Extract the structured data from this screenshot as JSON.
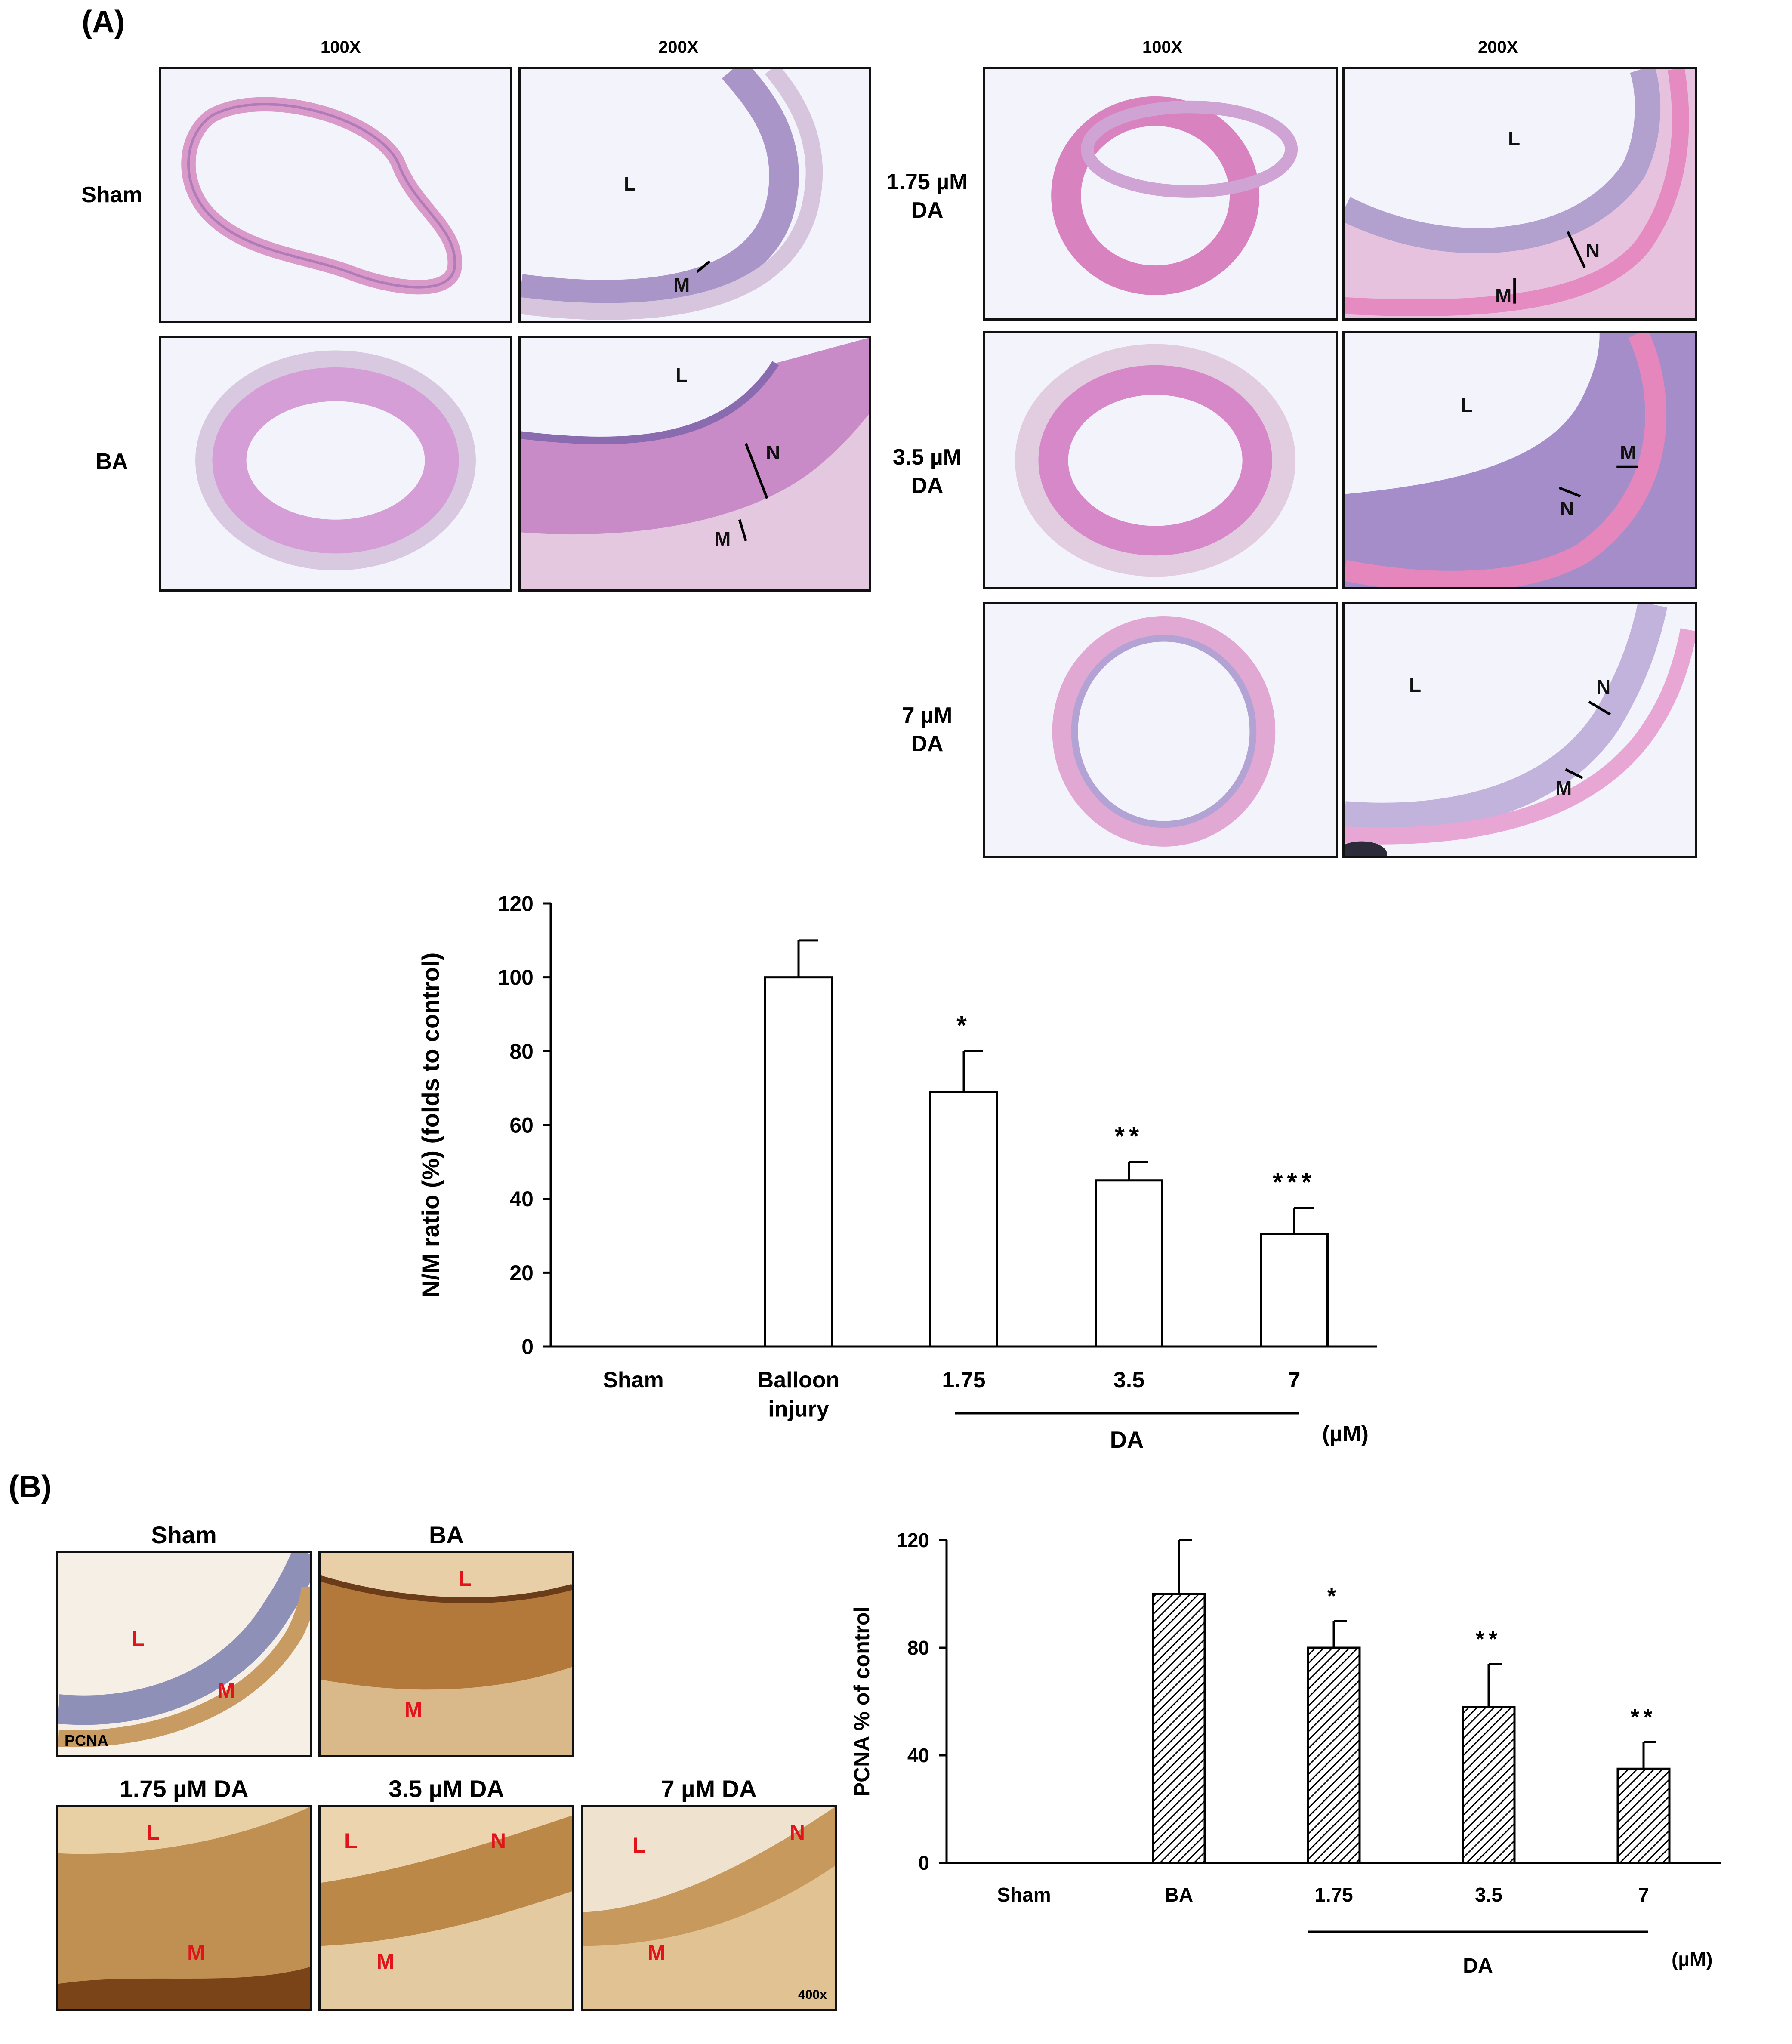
{
  "panel_a": {
    "letter": "(A)",
    "magnifications": {
      "low": "100X",
      "high": "200X"
    },
    "left_rows": [
      {
        "name": "Sham",
        "label_lines": [
          "Sham"
        ],
        "markers_high": [
          "L",
          "M"
        ]
      },
      {
        "name": "BA",
        "label_lines": [
          "BA"
        ],
        "markers_high": [
          "L",
          "N",
          "M"
        ]
      }
    ],
    "right_rows": [
      {
        "name": "1.75 µM DA",
        "label_lines": [
          "1.75 µM",
          "DA"
        ],
        "markers_high": [
          "L",
          "N",
          "M"
        ]
      },
      {
        "name": "3.5 µM DA",
        "label_lines": [
          "3.5 µM",
          "DA"
        ],
        "markers_high": [
          "L",
          "M",
          "N"
        ]
      },
      {
        "name": "7 µM DA",
        "label_lines": [
          "7 µM",
          "DA"
        ],
        "markers_high": [
          "L",
          "N",
          "M"
        ]
      }
    ]
  },
  "panel_b": {
    "letter": "(B)",
    "stain_label": "PCNA",
    "scale_label": "400x",
    "images": [
      {
        "title": "Sham",
        "markers": [
          "L",
          "M"
        ]
      },
      {
        "title": "BA",
        "markers": [
          "L",
          "M"
        ]
      },
      {
        "title": "1.75 µM DA",
        "markers": [
          "L",
          "M"
        ]
      },
      {
        "title": "3.5 µM DA",
        "markers": [
          "L",
          "N",
          "M"
        ]
      },
      {
        "title": "7 µM DA",
        "markers": [
          "L",
          "N",
          "M"
        ]
      }
    ]
  },
  "chart_data": [
    {
      "type": "bar",
      "id": "nm_ratio",
      "title": "",
      "ylabel": "N/M ratio (%)   (folds to control)",
      "xlabel": "",
      "categories": [
        "Sham",
        "Balloon\ninjury",
        "1.75",
        "3.5",
        "7"
      ],
      "values": [
        0,
        100,
        69,
        45,
        30.5
      ],
      "errors": [
        0,
        10,
        11,
        5,
        7
      ],
      "significance": [
        "",
        "",
        "*",
        "**",
        "***"
      ],
      "yticks": [
        0,
        20,
        40,
        60,
        80,
        100,
        120
      ],
      "ylim": [
        0,
        120
      ],
      "group_label": "DA",
      "unit_label": "(µM)",
      "fill": "#ffffff"
    },
    {
      "type": "bar",
      "id": "pcna",
      "title": "",
      "ylabel": "PCNA % of control",
      "xlabel": "",
      "categories": [
        "Sham",
        "BA",
        "1.75",
        "3.5",
        "7"
      ],
      "values": [
        0,
        100,
        80,
        58,
        35
      ],
      "errors": [
        0,
        20,
        10,
        16,
        10
      ],
      "significance": [
        "",
        "",
        "*",
        "**",
        "**"
      ],
      "yticks": [
        0,
        40,
        80,
        120
      ],
      "ylim": [
        0,
        120
      ],
      "group_label": "DA",
      "unit_label": "(µM)",
      "fill": "hatched"
    }
  ]
}
